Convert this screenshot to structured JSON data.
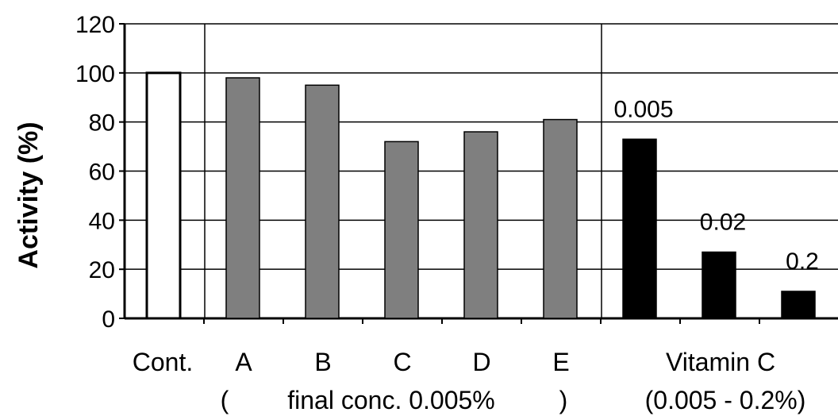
{
  "chart_data": {
    "type": "bar",
    "title": "",
    "xlabel": "",
    "ylabel": "Activity (%)",
    "ylim": [
      0,
      120
    ],
    "yticks": [
      0,
      20,
      40,
      60,
      80,
      100,
      120
    ],
    "grid": "horizontal",
    "categories": [
      "Cont.",
      "A",
      "B",
      "C",
      "D",
      "E",
      "0.005",
      "0.02",
      "0.2"
    ],
    "values": [
      100,
      98,
      95,
      72,
      76,
      81,
      73,
      27,
      11
    ],
    "bar_colors": [
      "#ffffff",
      "#7f7f7f",
      "#7f7f7f",
      "#7f7f7f",
      "#7f7f7f",
      "#7f7f7f",
      "#000000",
      "#000000",
      "#000000"
    ],
    "category_labels": [
      "Cont.",
      "A",
      "B",
      "C",
      "D",
      "E"
    ],
    "group_labels": [
      {
        "line1": "Vitamin C",
        "line2": "(0.005 - 0.2%)"
      }
    ],
    "sub_label": {
      "open": "(",
      "text": "final conc. 0.005%",
      "close": ")"
    },
    "bar_annotations": [
      "",
      "",
      "",
      "",
      "",
      "",
      "0.005",
      "0.02",
      "0.2"
    ]
  }
}
